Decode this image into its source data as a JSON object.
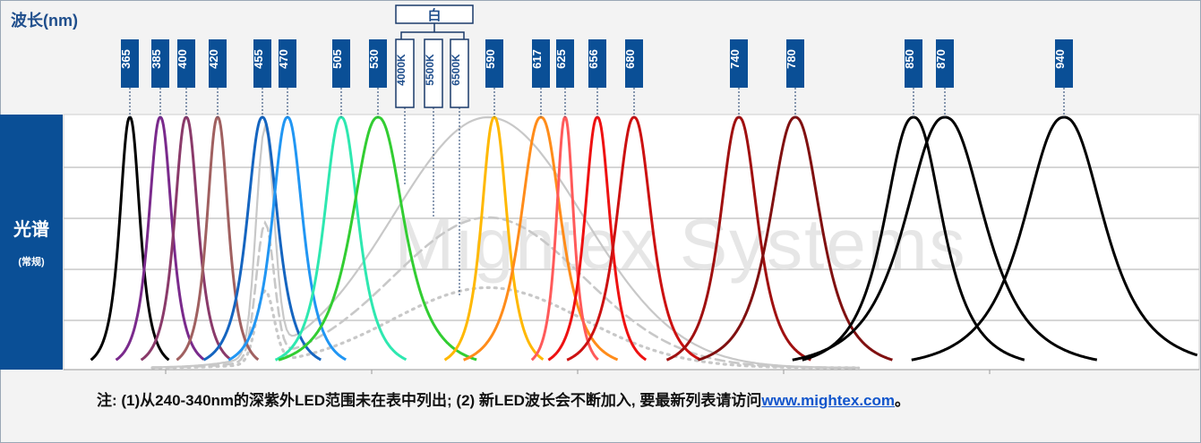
{
  "title": "波长(nm)",
  "y_label": {
    "main": "光谱",
    "sub": "(常规)"
  },
  "note": {
    "text": "注: (1)从240-340nm的深紫外LED范围未在表中列出; (2) 新LED波长会不断加入, 要最新列表请访问",
    "link": "www.mightex.com",
    "suffix": "。"
  },
  "watermark": "Mightex Systems",
  "chart_data": {
    "type": "line",
    "xlabel": "波长(nm)",
    "ylabel": "光谱 (常规)",
    "white_group_label": "白",
    "wavelength_labels": [
      "365",
      "385",
      "400",
      "420",
      "455",
      "470",
      "505",
      "530",
      "590",
      "617",
      "625",
      "656",
      "680",
      "740",
      "780",
      "850",
      "870",
      "940"
    ],
    "white_labels": [
      "4000K",
      "5500K",
      "6500K"
    ],
    "series": [
      {
        "label": "365",
        "peak": 365,
        "color": "#000000"
      },
      {
        "label": "385",
        "peak": 385,
        "color": "#7a2a8c"
      },
      {
        "label": "400",
        "peak": 400,
        "color": "#8a3a6a"
      },
      {
        "label": "420",
        "peak": 420,
        "color": "#a06060"
      },
      {
        "label": "455",
        "peak": 455,
        "color": "#1565c0"
      },
      {
        "label": "470",
        "peak": 470,
        "color": "#2196f3"
      },
      {
        "label": "505",
        "peak": 505,
        "color": "#2ee8b0"
      },
      {
        "label": "530",
        "peak": 530,
        "color": "#32cd32"
      },
      {
        "label": "590",
        "peak": 590,
        "color": "#ffb800"
      },
      {
        "label": "617",
        "peak": 617,
        "color": "#ff8c1a"
      },
      {
        "label": "625",
        "peak": 625,
        "color": "#ff5a5a"
      },
      {
        "label": "656",
        "peak": 656,
        "color": "#ee1111"
      },
      {
        "label": "680",
        "peak": 680,
        "color": "#cc1111"
      },
      {
        "label": "740",
        "peak": 740,
        "color": "#a01010"
      },
      {
        "label": "780",
        "peak": 780,
        "color": "#801010"
      },
      {
        "label": "850",
        "peak": 850,
        "color": "#000000"
      },
      {
        "label": "870",
        "peak": 870,
        "color": "#000000"
      },
      {
        "label": "940",
        "peak": 940,
        "color": "#000000"
      }
    ],
    "white_series": [
      {
        "label": "4000K",
        "color": "#c8c8c8",
        "style": "solid"
      },
      {
        "label": "5500K",
        "color": "#c8c8c8",
        "style": "dashed"
      },
      {
        "label": "6500K",
        "color": "#c8c8c8",
        "style": "dotted"
      }
    ],
    "grid": true,
    "ylim": [
      0,
      1
    ]
  }
}
